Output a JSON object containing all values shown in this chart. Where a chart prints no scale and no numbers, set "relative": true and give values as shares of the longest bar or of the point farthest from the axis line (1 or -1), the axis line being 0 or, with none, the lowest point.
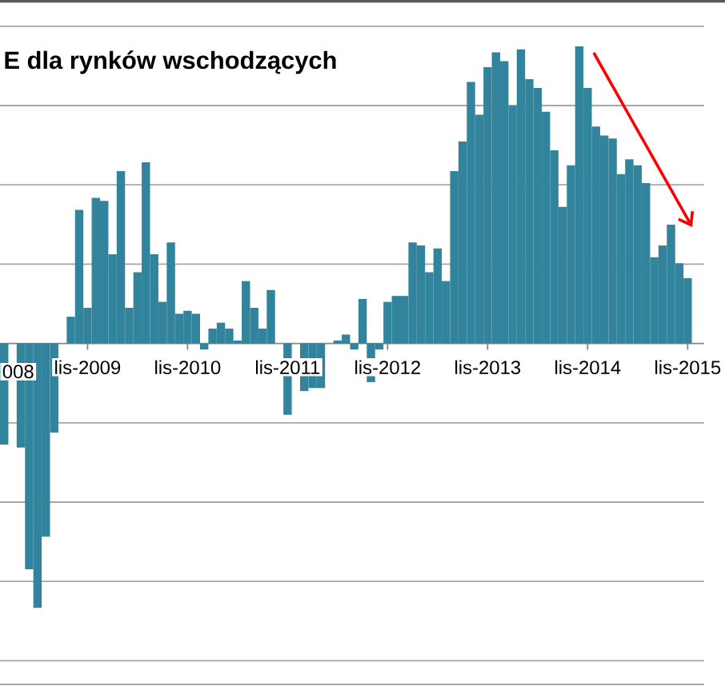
{
  "chart_data": {
    "type": "bar",
    "title": "E dla rynków wschodzących",
    "relative": true,
    "grid": "y",
    "color": "#31849b",
    "categories": [
      null,
      null,
      null,
      null,
      null,
      null,
      null,
      null,
      null,
      null,
      "lis-2009",
      null,
      null,
      null,
      null,
      null,
      null,
      null,
      null,
      null,
      null,
      null,
      "lis-2010",
      null,
      null,
      null,
      null,
      null,
      null,
      null,
      null,
      null,
      null,
      null,
      "lis-2011",
      null,
      null,
      null,
      null,
      null,
      null,
      null,
      null,
      null,
      null,
      null,
      "lis-2012",
      null,
      null,
      null,
      null,
      null,
      null,
      null,
      null,
      null,
      null,
      null,
      "lis-2013",
      null,
      null,
      null,
      null,
      null,
      null,
      null,
      null,
      null,
      null,
      null,
      "lis-2014",
      null,
      null,
      null,
      null,
      null,
      null,
      null,
      null,
      null,
      null,
      null,
      "lis-2015"
    ],
    "values": [
      -0.34,
      null,
      -0.35,
      -0.76,
      -0.89,
      -0.65,
      -0.3,
      0,
      0.09,
      0.45,
      0.12,
      0.49,
      0.48,
      0.3,
      0.58,
      0.12,
      0.24,
      0.61,
      0.3,
      0.14,
      0.34,
      0.1,
      0.11,
      0.1,
      -0.02,
      0.05,
      0.07,
      0.05,
      0.01,
      0.21,
      0.12,
      0.05,
      0.18,
      null,
      -0.24,
      null,
      -0.16,
      -0.15,
      -0.15,
      null,
      0.01,
      0.03,
      -0.02,
      0.15,
      -0.13,
      -0.02,
      0.14,
      0.16,
      0.16,
      0.34,
      0.33,
      0.24,
      0.32,
      0.21,
      0.58,
      0.68,
      0.88,
      0.77,
      0.93,
      0.98,
      0.95,
      0.8,
      0.99,
      0.89,
      0.86,
      0.78,
      0.65,
      0.46,
      0.6,
      1,
      0.86,
      0.73,
      0.7,
      0.69,
      0.57,
      0.62,
      0.6,
      0.54,
      0.29,
      0.33,
      0.4,
      0.27,
      0.22
    ],
    "annotations": [
      "008"
    ]
  }
}
